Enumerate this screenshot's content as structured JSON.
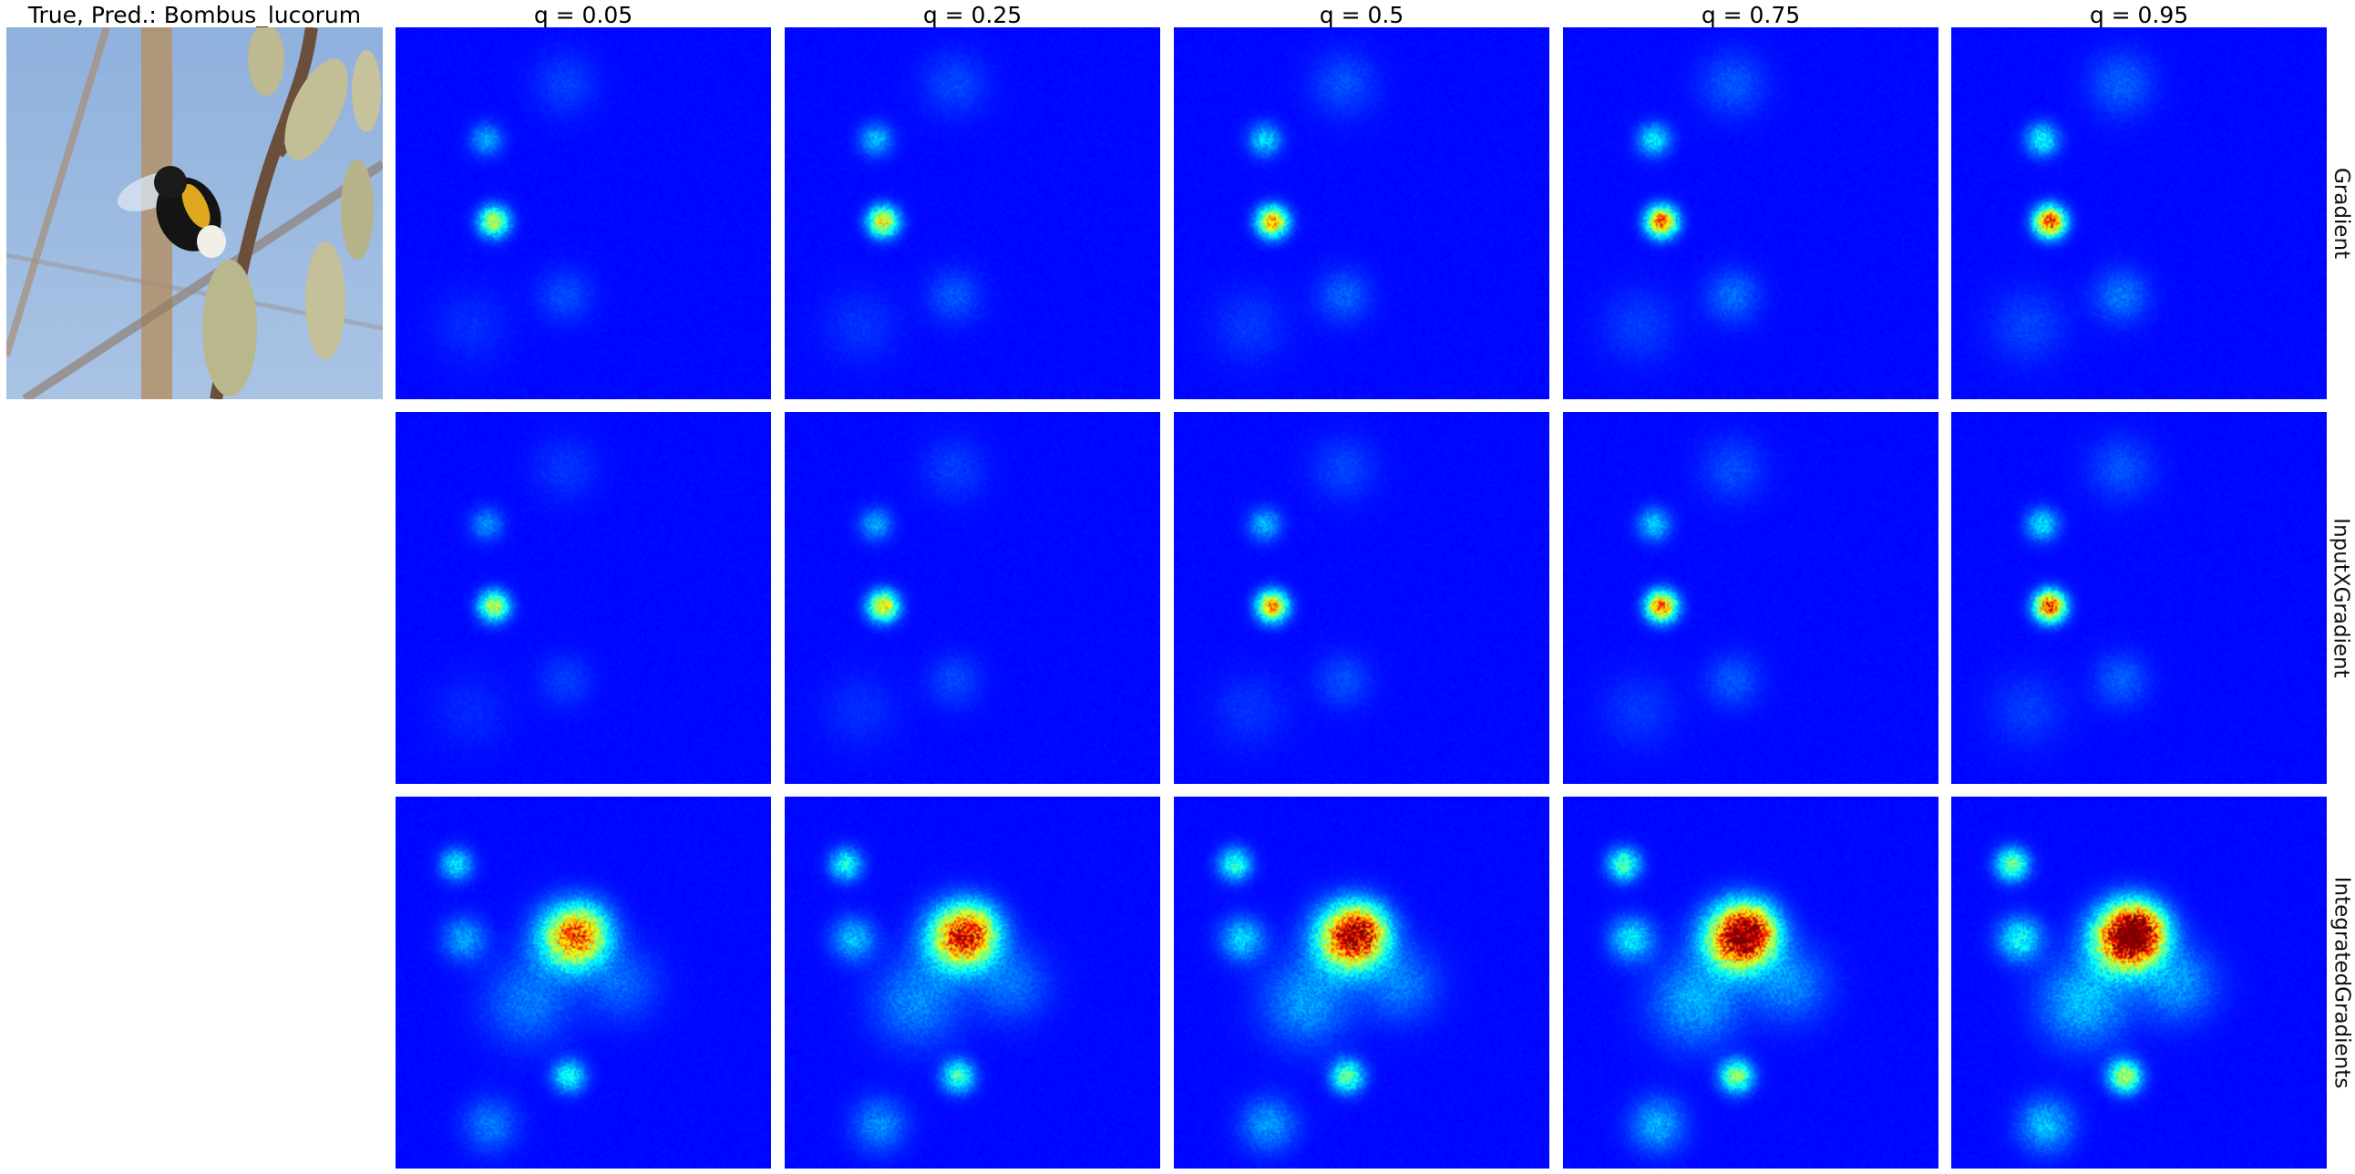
{
  "original": {
    "title": "True, Pred.: Bombus_lucorum",
    "icon": "bumblebee-on-willow-catkins-photo"
  },
  "columns": [
    "q = 0.05",
    "q = 0.25",
    "q = 0.5",
    "q = 0.75",
    "q = 0.95"
  ],
  "rows": [
    "Gradient",
    "InputXGradient",
    "IntegratedGradients"
  ],
  "colors": {
    "colormap": "jet",
    "background": "#00007f",
    "sky": "#9dbbe0",
    "catkin": "#b9b78c",
    "bee_band": "#e0a81e"
  }
}
